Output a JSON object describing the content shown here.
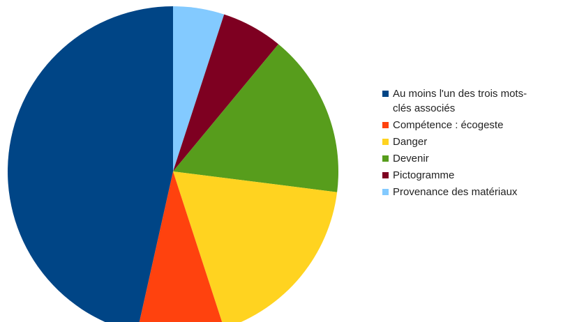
{
  "chart_data": {
    "type": "pie",
    "title": "",
    "start": "12 o'clock",
    "direction": "clockwise",
    "legend_position": "right",
    "slices": [
      {
        "label": "Provenance des matériaux",
        "value": 5.0,
        "color": "#83caff"
      },
      {
        "label": "Pictogramme",
        "value": 6.0,
        "color": "#7e0021"
      },
      {
        "label": "Devenir",
        "value": 16.0,
        "color": "#579d1c"
      },
      {
        "label": "Danger",
        "value": 18.0,
        "color": "#ffd320"
      },
      {
        "label": "Compétence : écogeste",
        "value": 8.5,
        "color": "#ff420e"
      },
      {
        "label": "Au moins l'un des trois mots-clés associés",
        "value": 46.5,
        "color": "#004586"
      }
    ],
    "legend": [
      {
        "label": "Au moins l'un des trois mots-\nclés associés",
        "color": "#004586"
      },
      {
        "label": "Compétence : écogeste",
        "color": "#ff420e"
      },
      {
        "label": "Danger",
        "color": "#ffd320"
      },
      {
        "label": "Devenir",
        "color": "#579d1c"
      },
      {
        "label": "Pictogramme",
        "color": "#7e0021"
      },
      {
        "label": "Provenance des matériaux",
        "color": "#83caff"
      }
    ]
  }
}
